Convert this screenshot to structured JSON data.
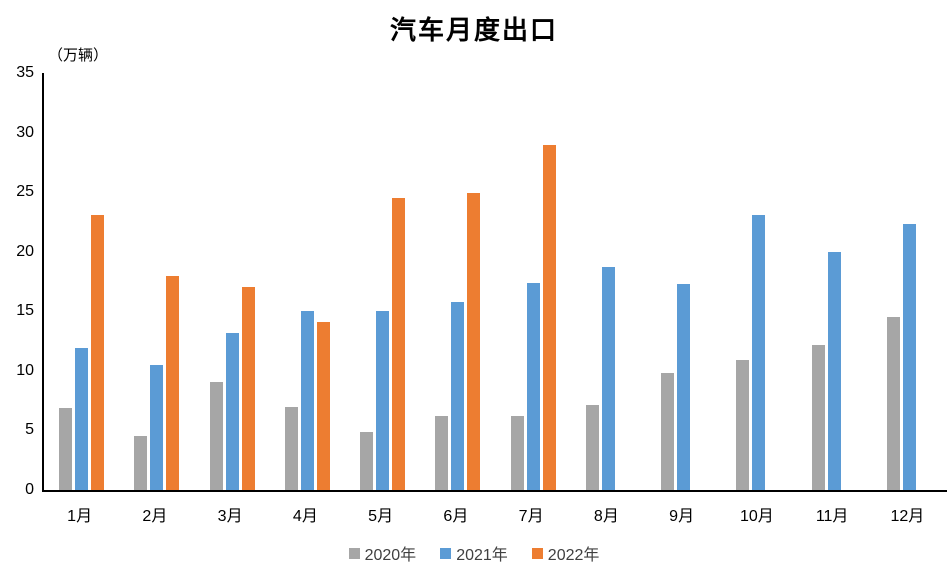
{
  "chart": {
    "title": "汽车月度出口",
    "unit_label": "（万辆）"
  },
  "chart_data": {
    "type": "bar",
    "title": "汽车月度出口",
    "ylabel": "（万辆）",
    "categories": [
      "1月",
      "2月",
      "3月",
      "4月",
      "5月",
      "6月",
      "7月",
      "8月",
      "9月",
      "10月",
      "11月",
      "12月"
    ],
    "series": [
      {
        "name": "2020年",
        "color": "#A6A6A6",
        "values": [
          6.9,
          4.5,
          9.1,
          7.0,
          4.9,
          6.2,
          6.2,
          7.1,
          9.8,
          10.9,
          12.2,
          14.5
        ]
      },
      {
        "name": "2021年",
        "color": "#5B9BD5",
        "values": [
          11.9,
          10.5,
          13.2,
          15.0,
          15.0,
          15.8,
          17.4,
          18.7,
          17.3,
          23.1,
          20.0,
          22.3
        ]
      },
      {
        "name": "2022年",
        "color": "#ED7D31",
        "values": [
          23.1,
          18.0,
          17.0,
          14.1,
          24.5,
          24.9,
          29.0,
          null,
          null,
          null,
          null,
          null
        ]
      }
    ],
    "ylim": [
      0,
      35
    ],
    "yticks": [
      0,
      5,
      10,
      15,
      20,
      25,
      30,
      35
    ],
    "grid": false,
    "legend_position": "bottom",
    "axis_color": "#000000"
  }
}
